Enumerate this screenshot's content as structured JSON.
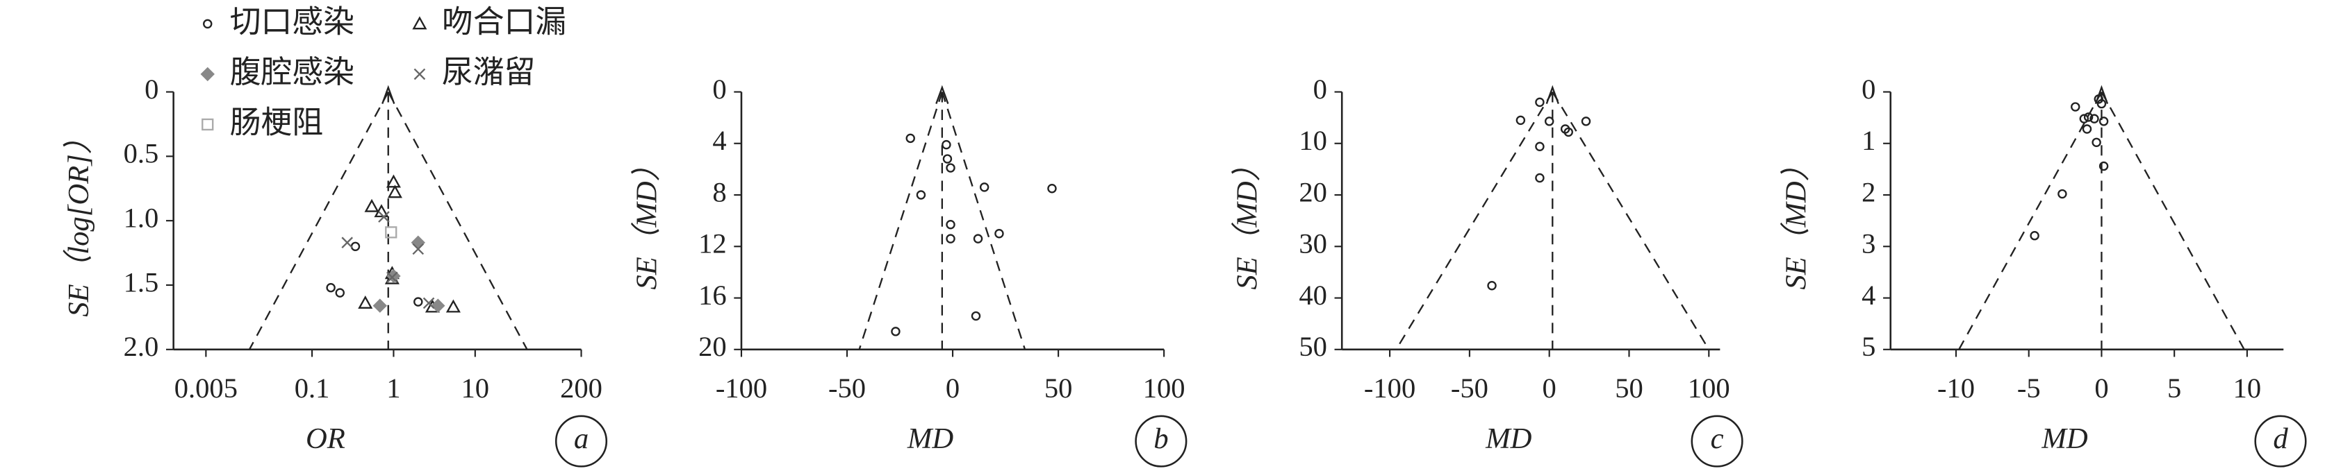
{
  "chart_data": [
    {
      "type": "funnel",
      "xscale": "log",
      "xlim": [
        0.002,
        200
      ],
      "ylim": [
        0,
        2
      ],
      "xticks": [
        0.005,
        0.1,
        1,
        10,
        200
      ],
      "yticks": [
        0,
        0.5,
        {
          "value": 1,
          "label": "1.0"
        },
        1.5,
        {
          "value": 2,
          "label": "2.0"
        }
      ],
      "x_label": "OR",
      "y_label": "SE（log[OR]）",
      "panel_label": "a",
      "pooled": 0.86,
      "legend": "top-left",
      "series": [
        {
          "name": "切口感染",
          "marker": "circle",
          "color": "#222",
          "x": [
            0.17,
            0.22,
            0.34,
            2.0
          ],
          "values": [
            1.52,
            1.56,
            1.2,
            1.63
          ]
        },
        {
          "name": "吻合口漏",
          "marker": "triangle",
          "color": "#222",
          "x": [
            0.54,
            0.71,
            1.0,
            1.04,
            0.96,
            0.96,
            0.45,
            3.0,
            5.4
          ],
          "values": [
            0.89,
            0.93,
            0.7,
            0.78,
            1.41,
            1.45,
            1.64,
            1.67,
            1.67
          ]
        },
        {
          "name": "腹腔感染",
          "marker": "diamond",
          "color": "#888",
          "x": [
            1.0,
            2.0,
            3.5,
            0.68
          ],
          "values": [
            1.43,
            1.17,
            1.66,
            1.66
          ]
        },
        {
          "name": "尿潴留",
          "marker": "cross",
          "color": "#666",
          "x": [
            0.27,
            2.0,
            2.7,
            0.96,
            0.76
          ],
          "values": [
            1.17,
            1.22,
            1.64,
            1.44,
            0.97
          ]
        },
        {
          "name": "肠梗阻",
          "marker": "square",
          "color": "#aaa",
          "x": [
            0.93
          ],
          "values": [
            1.09
          ]
        }
      ]
    },
    {
      "type": "funnel",
      "xscale": "linear",
      "xlim": [
        -100,
        100
      ],
      "ylim": [
        0,
        20
      ],
      "xticks": [
        -100,
        -50,
        0,
        50,
        100
      ],
      "yticks": [
        0,
        4,
        8,
        12,
        16,
        20
      ],
      "x_label": "MD",
      "y_label": "SE（MD）",
      "panel_label": "b",
      "pooled": -5,
      "series": [
        {
          "marker": "circle",
          "color": "#222",
          "x": [
            -20,
            -3,
            -2.5,
            -1,
            -15,
            15,
            47,
            -1,
            -1,
            12,
            22,
            11,
            -27
          ],
          "values": [
            3.6,
            4.1,
            5.2,
            5.9,
            8,
            7.4,
            7.5,
            10.3,
            11.4,
            11.4,
            11,
            17.4,
            18.6
          ]
        }
      ]
    },
    {
      "type": "funnel",
      "xscale": "linear",
      "xlim": [
        -130,
        107
      ],
      "ylim": [
        0,
        50
      ],
      "xticks": [
        -100,
        -50,
        0,
        50,
        100
      ],
      "yticks": [
        0,
        10,
        20,
        30,
        40,
        50
      ],
      "x_label": "MD",
      "y_label": "SE（MD）",
      "panel_label": "c",
      "pooled": 2,
      "series": [
        {
          "marker": "circle",
          "color": "#222",
          "x": [
            -6,
            0,
            -18,
            10,
            23,
            -6,
            -6,
            -36,
            12
          ],
          "values": [
            2,
            5.7,
            5.5,
            7.2,
            5.7,
            10.6,
            16.7,
            37.6,
            7.8
          ]
        }
      ]
    },
    {
      "type": "funnel",
      "xscale": "linear",
      "xlim": [
        -14.5,
        12.5
      ],
      "ylim": [
        0,
        5
      ],
      "xticks": [
        -10,
        -5,
        0,
        5,
        10
      ],
      "yticks": [
        0,
        1,
        2,
        3,
        4,
        5
      ],
      "x_label": "MD",
      "y_label": "SE（MD）",
      "panel_label": "d",
      "pooled": 0,
      "series": [
        {
          "marker": "circle",
          "color": "#222",
          "x": [
            -0.2,
            0,
            -1.8,
            -0.9,
            -0.5,
            -1.2,
            0.15,
            -1,
            -0.35,
            0.15,
            -2.7,
            -4.6
          ],
          "values": [
            0.14,
            0.23,
            0.29,
            0.49,
            0.52,
            0.52,
            0.57,
            0.72,
            0.98,
            1.44,
            1.98,
            2.79
          ]
        }
      ]
    }
  ]
}
